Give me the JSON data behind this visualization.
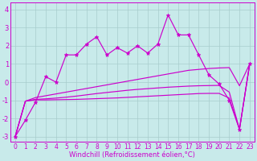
{
  "xlabel": "Windchill (Refroidissement éolien,°C)",
  "xlim": [
    -0.5,
    23.5
  ],
  "ylim": [
    -3.3,
    4.4
  ],
  "yticks": [
    -3,
    -2,
    -1,
    0,
    1,
    2,
    3,
    4
  ],
  "xticks": [
    0,
    1,
    2,
    3,
    4,
    5,
    6,
    7,
    8,
    9,
    10,
    11,
    12,
    13,
    14,
    15,
    16,
    17,
    18,
    19,
    20,
    21,
    22,
    23
  ],
  "bg_color": "#c8eaea",
  "line_color": "#cc00cc",
  "grid_color": "#a8cccc",
  "main_y": [
    -3.0,
    -2.1,
    -1.1,
    0.3,
    0.0,
    1.5,
    1.5,
    2.1,
    2.5,
    1.5,
    1.9,
    1.6,
    2.0,
    1.6,
    2.1,
    3.7,
    2.6,
    2.6,
    1.5,
    0.4,
    -0.1,
    -1.0,
    -2.6,
    1.0
  ],
  "smooth1": [
    -3.0,
    -1.05,
    -0.85,
    -0.75,
    -0.65,
    -0.55,
    -0.45,
    -0.35,
    -0.25,
    -0.15,
    -0.05,
    0.05,
    0.15,
    0.25,
    0.35,
    0.45,
    0.55,
    0.65,
    0.7,
    0.75,
    0.78,
    0.8,
    -0.2,
    1.0
  ],
  "smooth2": [
    -3.0,
    -1.05,
    -0.95,
    -0.92,
    -0.88,
    -0.83,
    -0.77,
    -0.7,
    -0.63,
    -0.57,
    -0.51,
    -0.45,
    -0.4,
    -0.36,
    -0.32,
    -0.28,
    -0.25,
    -0.22,
    -0.2,
    -0.19,
    -0.18,
    -0.55,
    -2.6,
    1.0
  ],
  "smooth3": [
    -3.0,
    -1.05,
    -0.98,
    -0.98,
    -0.97,
    -0.96,
    -0.95,
    -0.93,
    -0.91,
    -0.89,
    -0.87,
    -0.84,
    -0.81,
    -0.78,
    -0.75,
    -0.72,
    -0.69,
    -0.66,
    -0.63,
    -0.62,
    -0.62,
    -0.88,
    -2.6,
    1.0
  ]
}
